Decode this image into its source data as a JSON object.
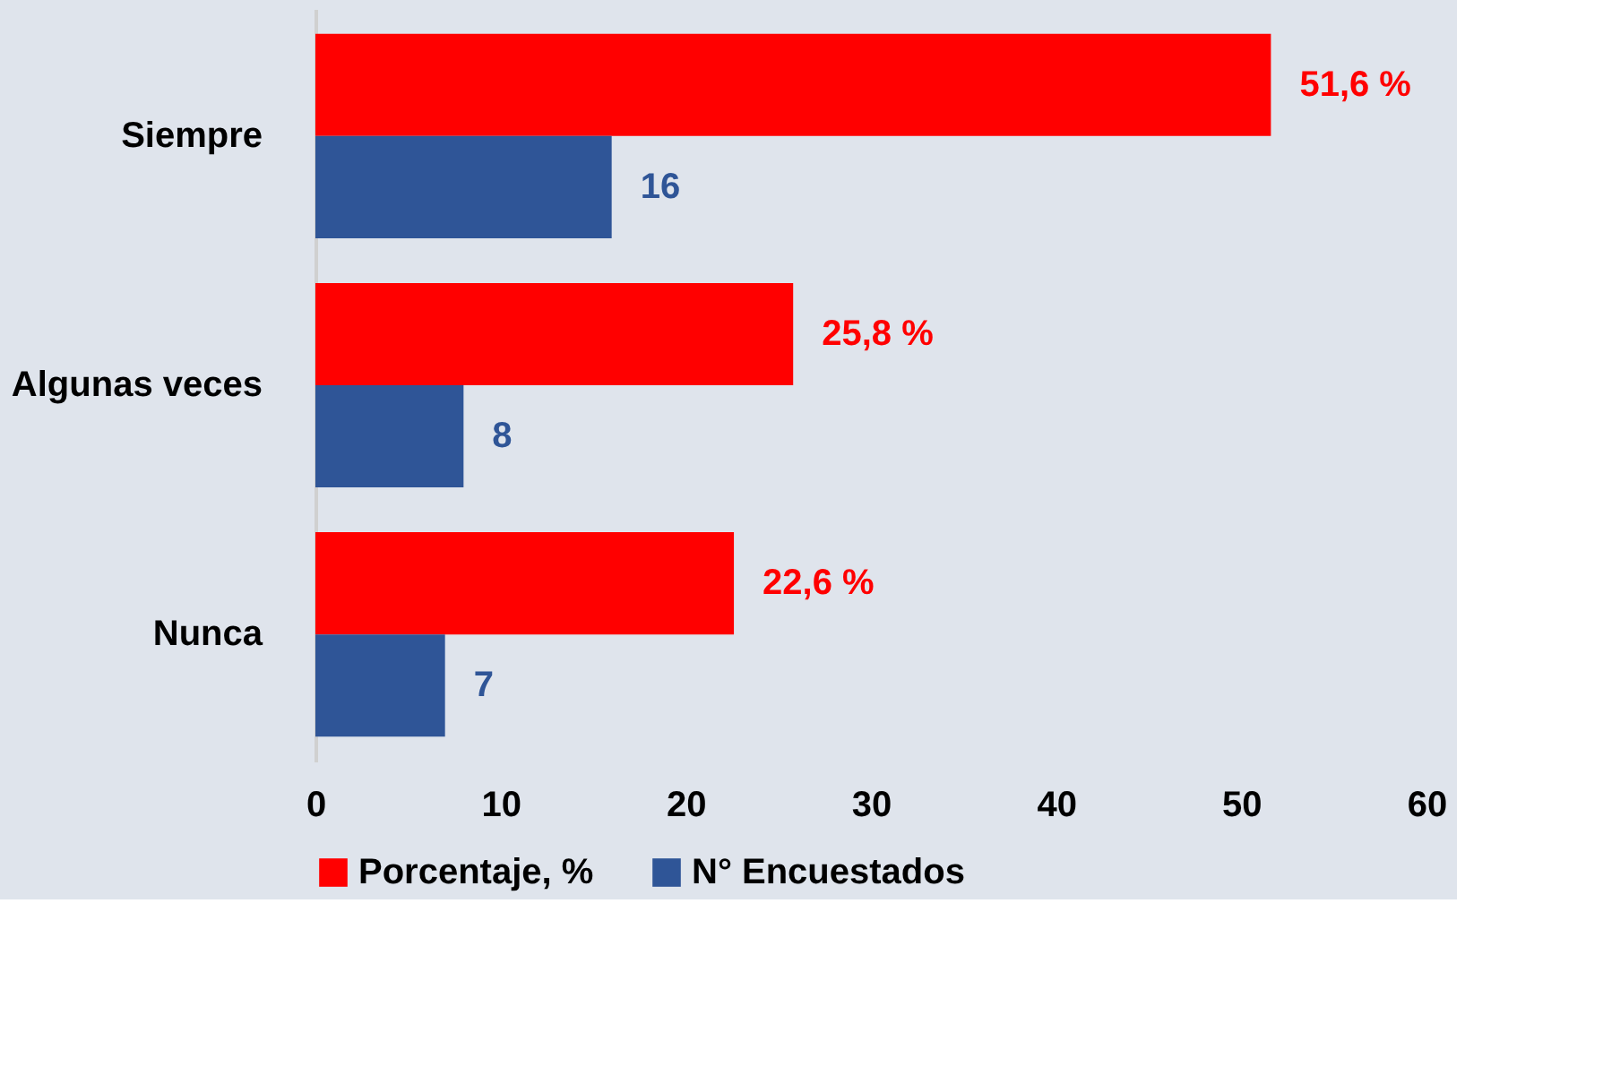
{
  "chart_data": {
    "type": "bar",
    "orientation": "horizontal",
    "categories": [
      "Siempre",
      "Algunas veces",
      "Nunca"
    ],
    "series": [
      {
        "name": "Porcentaje, %",
        "color": "#ff0000",
        "values": [
          51.6,
          25.8,
          22.6
        ],
        "value_labels": [
          "51,6 %",
          "25,8 %",
          "22,6 %"
        ]
      },
      {
        "name": "N° Encuestados",
        "color": "#2f5597",
        "values": [
          16,
          8,
          7
        ],
        "value_labels": [
          "16",
          "8",
          "7"
        ]
      }
    ],
    "xlim": [
      0,
      60
    ],
    "xticks": [
      0,
      10,
      20,
      30,
      40,
      50,
      60
    ],
    "grid": false,
    "legend": "bottom"
  }
}
